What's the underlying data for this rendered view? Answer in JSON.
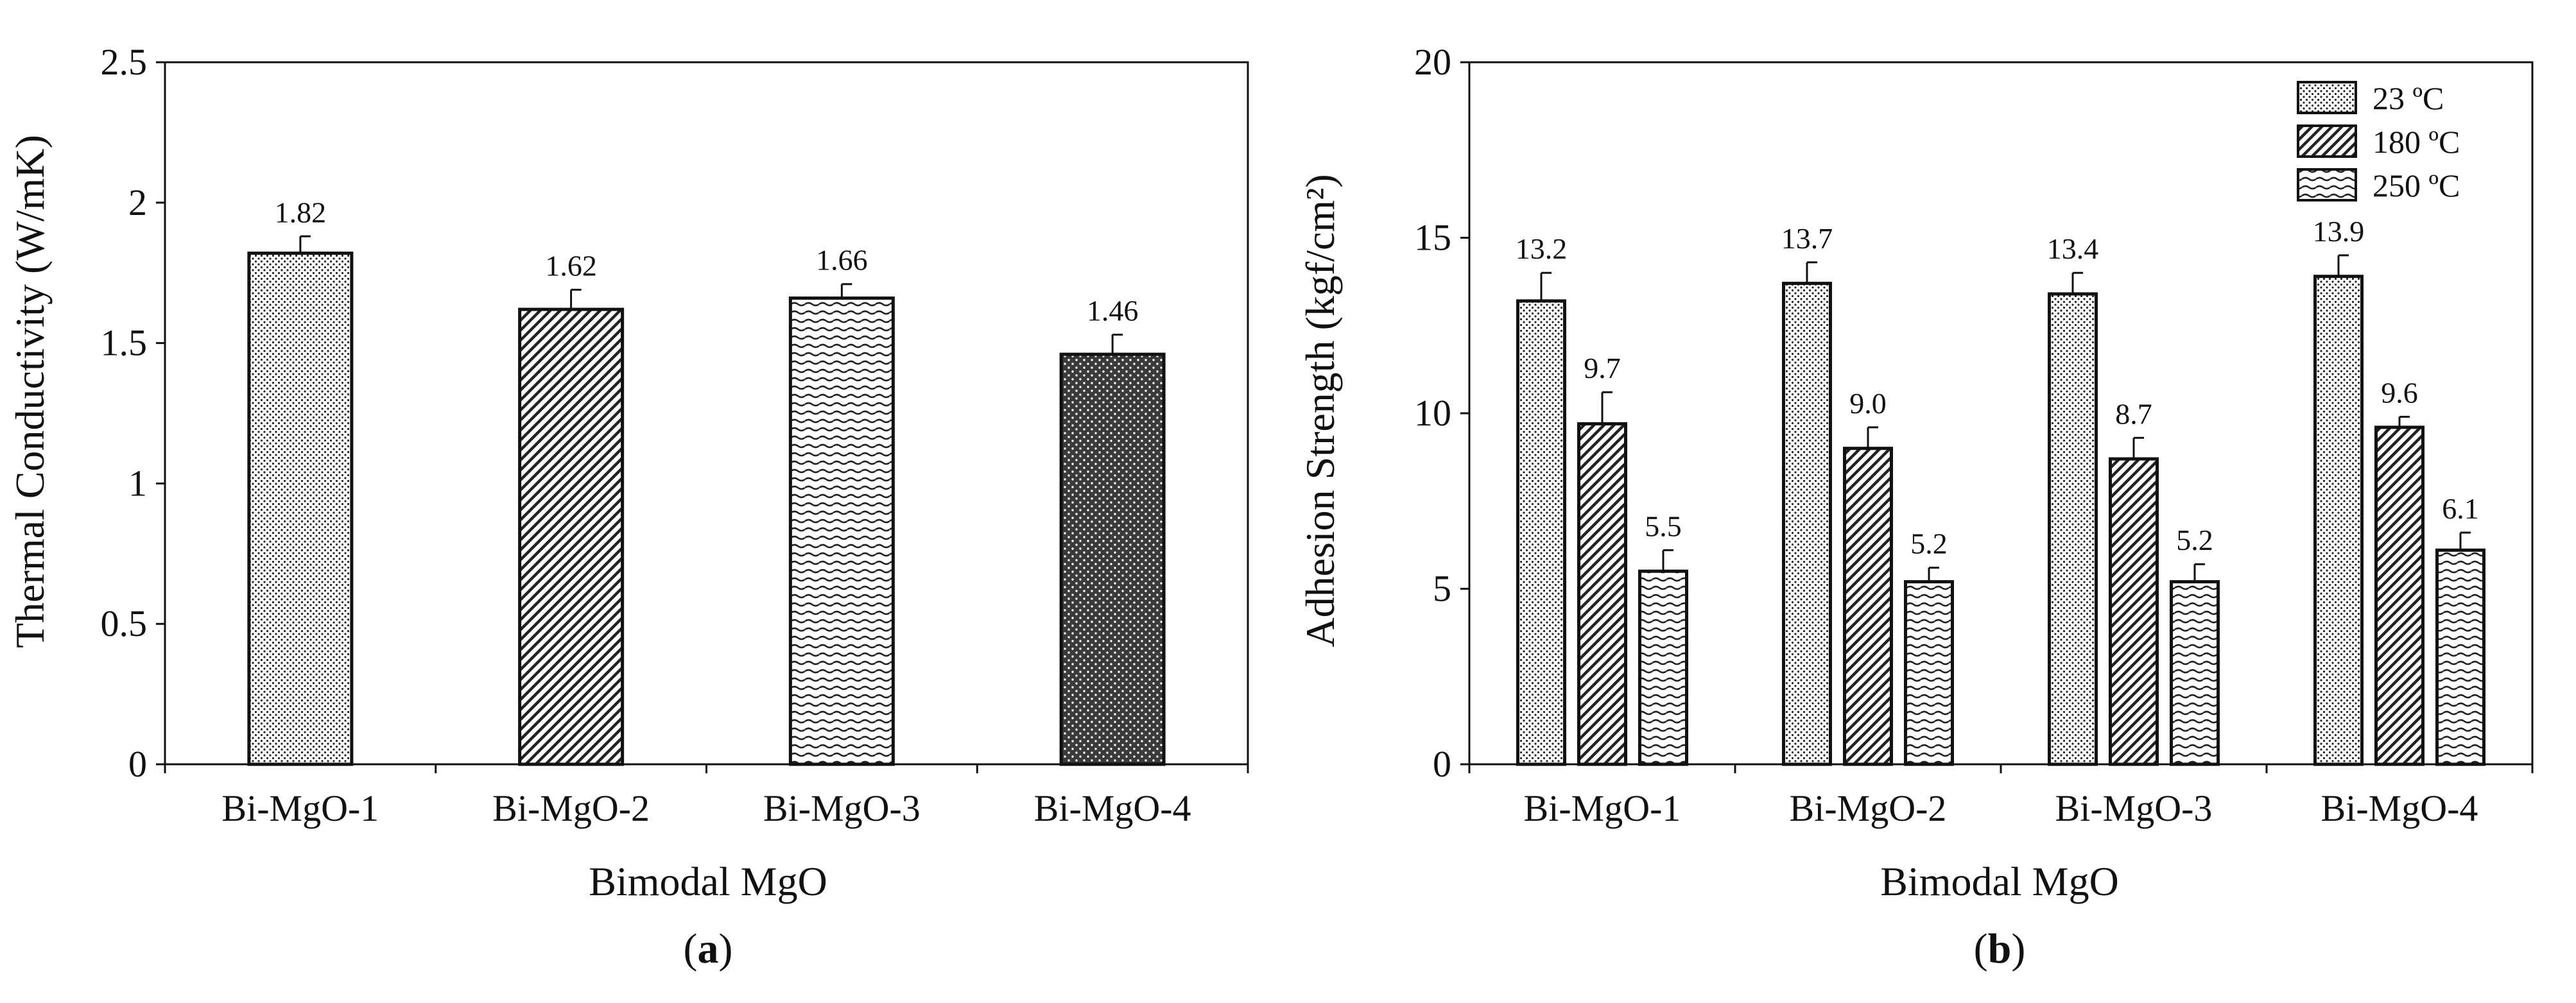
{
  "chart_data": [
    {
      "type": "bar",
      "panel_label": "a",
      "title": "",
      "xlabel": "Bimodal MgO",
      "ylabel": "Thermal Conductivity (W/mK)",
      "categories": [
        "Bi-MgO-1",
        "Bi-MgO-2",
        "Bi-MgO-3",
        "Bi-MgO-4"
      ],
      "values": [
        1.82,
        1.62,
        1.66,
        1.46
      ],
      "errors": [
        0.06,
        0.07,
        0.05,
        0.07
      ],
      "data_labels": [
        "1.82",
        "1.62",
        "1.66",
        "1.46"
      ],
      "ylim": [
        0,
        2.5
      ],
      "yticks": [
        0,
        0.5,
        1,
        1.5,
        2,
        2.5
      ],
      "ytick_labels": [
        "0",
        "0.5",
        "1",
        "1.5",
        "2",
        "2.5"
      ],
      "patterns": [
        "dots",
        "diagonal",
        "wave",
        "checker"
      ],
      "grid": false
    },
    {
      "type": "bar",
      "panel_label": "b",
      "title": "",
      "xlabel": "Bimodal MgO",
      "ylabel": "Adhesion Strength (kgf/cm²)",
      "categories": [
        "Bi-MgO-1",
        "Bi-MgO-2",
        "Bi-MgO-3",
        "Bi-MgO-4"
      ],
      "series": [
        {
          "name": "23 ºC",
          "pattern": "dots",
          "values": [
            13.2,
            13.7,
            13.4,
            13.9
          ],
          "errors": [
            0.8,
            0.6,
            0.6,
            0.6
          ],
          "data_labels": [
            "13.2",
            "13.7",
            "13.4",
            "13.9"
          ]
        },
        {
          "name": "180 ºC",
          "pattern": "diagonal",
          "values": [
            9.7,
            9.0,
            8.7,
            9.6
          ],
          "errors": [
            0.9,
            0.6,
            0.6,
            0.3
          ],
          "data_labels": [
            "9.7",
            "9.0",
            "8.7",
            "9.6"
          ]
        },
        {
          "name": "250 ºC",
          "pattern": "wave",
          "values": [
            5.5,
            5.2,
            5.2,
            6.1
          ],
          "errors": [
            0.6,
            0.4,
            0.5,
            0.5
          ],
          "data_labels": [
            "5.5",
            "5.2",
            "5.2",
            "6.1"
          ]
        }
      ],
      "ylim": [
        0,
        20
      ],
      "yticks": [
        0,
        5,
        10,
        15,
        20
      ],
      "ytick_labels": [
        "0",
        "5",
        "10",
        "15",
        "20"
      ],
      "legend_position": "top-right",
      "grid": false
    }
  ]
}
